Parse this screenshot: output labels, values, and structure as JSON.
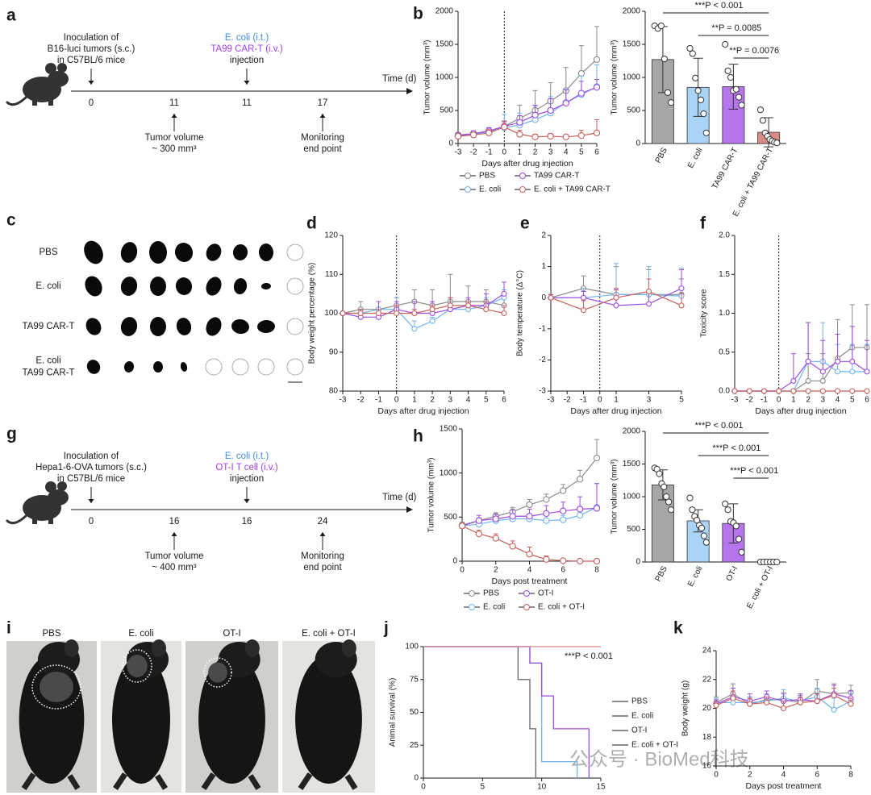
{
  "timelines": [
    {
      "panel": "a",
      "axis_label": "Time (d)",
      "events": [
        {
          "day": 0,
          "above": [
            "Inoculation of",
            "B16-luci tumors (s.c.)",
            "in C57BL/6 mice"
          ]
        },
        {
          "day": 11,
          "below": [
            "Tumor volume",
            "~ 300 mm³"
          ]
        },
        {
          "day": 11,
          "above": [
            "E. coli (i.t.)",
            "TA99 CAR-T (i.v.)",
            "injection"
          ]
        },
        {
          "day": 17,
          "below": [
            "Monitoring",
            "end point"
          ]
        }
      ]
    },
    {
      "panel": "g",
      "axis_label": "Time (d)",
      "events": [
        {
          "day": 0,
          "above": [
            "Inoculation of",
            "Hepa1-6-OVA tumors (s.c.)",
            "in C57BL/6 mice"
          ]
        },
        {
          "day": 16,
          "below": [
            "Tumor volume",
            "~ 400 mm³"
          ]
        },
        {
          "day": 16,
          "above": [
            "E. coli (i.t.)",
            "OT-I T cell (i.v.)",
            "injection"
          ]
        },
        {
          "day": 24,
          "below": [
            "Monitoring",
            "end point"
          ]
        }
      ]
    }
  ],
  "tumor_images": {
    "panel": "c",
    "rows": [
      [
        "PBS"
      ],
      [
        "E. coli"
      ],
      [
        "TA99 CAR-T"
      ],
      [
        "E. coli",
        "TA99 CAR-T"
      ]
    ]
  },
  "photos": {
    "panel": "i",
    "labels": [
      "PBS",
      "E. coli",
      "OT-I",
      "E. coli + OT-I"
    ]
  },
  "watermark": "公众号 · BioMed科技",
  "chart_data": [
    {
      "type": "line",
      "panel": "b",
      "ylabel": "Tumor volume (mm³)",
      "xlabel": "Days after drug injection",
      "x": [
        -3,
        -2,
        -1,
        0,
        1,
        2,
        3,
        4,
        5,
        6
      ],
      "xlim": [
        -3,
        6
      ],
      "xticks": [
        -3,
        -2,
        -1,
        0,
        1,
        2,
        3,
        4,
        5,
        6
      ],
      "ylim": [
        0,
        2000
      ],
      "yticks": [
        0,
        500,
        1000,
        1500,
        2000
      ],
      "vline": 0,
      "legend": "bottom",
      "series": [
        {
          "name": "PBS",
          "color": "#8c8c8c",
          "values": [
            130,
            150,
            190,
            260,
            380,
            500,
            640,
            800,
            1060,
            1270
          ],
          "errors": [
            30,
            40,
            50,
            80,
            200,
            300,
            280,
            350,
            420,
            500
          ]
        },
        {
          "name": "E. coli",
          "color": "#6fb3f0",
          "values": [
            110,
            140,
            180,
            240,
            280,
            360,
            460,
            620,
            740,
            860
          ],
          "errors": [
            40,
            50,
            60,
            200,
            180,
            200,
            250,
            200,
            280,
            330
          ]
        },
        {
          "name": "TA99 CAR-T",
          "color": "#a04be0",
          "values": [
            120,
            150,
            190,
            260,
            320,
            430,
            500,
            610,
            760,
            850
          ],
          "errors": [
            30,
            40,
            50,
            80,
            100,
            150,
            180,
            200,
            180,
            120
          ]
        },
        {
          "name": "E. coli + TA99 CAR-T",
          "color": "#c9605a",
          "values": [
            110,
            130,
            160,
            250,
            140,
            100,
            110,
            100,
            120,
            160
          ],
          "errors": [
            30,
            40,
            50,
            80,
            60,
            40,
            40,
            30,
            80,
            200
          ]
        }
      ]
    },
    {
      "type": "bar",
      "ylabel": "Tumor volume (mm³)",
      "ylim": [
        0,
        2000
      ],
      "yticks": [
        0,
        500,
        1000,
        1500,
        2000
      ],
      "categories": [
        "PBS",
        "E. coli",
        "TA99 CAR-T",
        "E. coli + TA99 CAR-T"
      ],
      "values": [
        1270,
        850,
        860,
        170
      ],
      "errors": [
        500,
        440,
        340,
        220
      ],
      "colors": [
        "#a6a6a6",
        "#a9d3f7",
        "#b675ec",
        "#d98a85"
      ],
      "points": [
        [
          1780,
          1740,
          1780,
          1280,
          770,
          620
        ],
        [
          1440,
          1360,
          990,
          800,
          660,
          450,
          160
        ],
        [
          1500,
          1100,
          1000,
          800,
          820,
          700,
          580
        ],
        [
          510,
          350,
          160,
          110,
          60,
          40,
          20,
          10
        ]
      ],
      "annotations": [
        "***P < 0.001",
        "**P = 0.0085",
        "**P = 0.0076"
      ]
    },
    {
      "type": "line",
      "panel": "d",
      "ylabel": "Body weight percentage (%)",
      "xlabel": "Days after drug injection",
      "x": [
        -3,
        -2,
        -1,
        0,
        1,
        2,
        3,
        4,
        5,
        6
      ],
      "xlim": [
        -3,
        6
      ],
      "xticks": [
        -3,
        -2,
        -1,
        0,
        1,
        2,
        3,
        4,
        5,
        6
      ],
      "ylim": [
        80,
        120
      ],
      "yticks": [
        80,
        90,
        100,
        110,
        120
      ],
      "vline": 0,
      "series": [
        {
          "color": "#8c8c8c",
          "values": [
            100,
            101,
            101,
            102,
            103,
            102,
            103,
            103,
            103,
            102
          ],
          "errors": [
            0,
            2,
            2,
            2,
            3,
            4,
            7,
            4,
            3,
            2
          ]
        },
        {
          "color": "#6fb3f0",
          "values": [
            100,
            100,
            101,
            101,
            96,
            98,
            101,
            101,
            102,
            104
          ],
          "errors": [
            0,
            1,
            2,
            3,
            2,
            1,
            2,
            2,
            2,
            2
          ]
        },
        {
          "color": "#a04be0",
          "values": [
            100,
            99,
            99,
            101,
            100,
            100,
            101,
            102,
            102,
            105
          ],
          "errors": [
            0,
            2,
            4,
            2,
            3,
            3,
            3,
            2,
            3,
            3
          ]
        },
        {
          "color": "#c9605a",
          "values": [
            100,
            100,
            100,
            100,
            100,
            101,
            102,
            102,
            101,
            100
          ],
          "errors": [
            0,
            1,
            1,
            2,
            1,
            1,
            2,
            1,
            2,
            2
          ]
        }
      ]
    },
    {
      "type": "line",
      "panel": "e",
      "ylabel": "Body temperature (Δ°C)",
      "xlabel": "Days after drug injection",
      "x": [
        -3,
        -1,
        1,
        3,
        5
      ],
      "xlim": [
        -3,
        5
      ],
      "xticks": [
        -3,
        -2,
        -1,
        0,
        1,
        3,
        5
      ],
      "ylim": [
        -3,
        2
      ],
      "yticks": [
        -3,
        -2,
        -1,
        0,
        1,
        2
      ],
      "vline": 0,
      "series": [
        {
          "color": "#8c8c8c",
          "values": [
            0,
            0.3,
            0.1,
            0.1,
            0.1
          ],
          "errors": [
            0.1,
            0.4,
            0.9,
            0.8,
            0.5
          ]
        },
        {
          "color": "#6fb3f0",
          "values": [
            0,
            0,
            0.1,
            0.1,
            0.05
          ],
          "errors": [
            0.1,
            0.3,
            1,
            0.9,
            0.9
          ]
        },
        {
          "color": "#a04be0",
          "values": [
            0,
            0,
            -0.25,
            -0.2,
            0.3
          ],
          "errors": [
            0.1,
            0.2,
            0.5,
            0.4,
            0.6
          ]
        },
        {
          "color": "#c9605a",
          "values": [
            0,
            -0.4,
            0,
            0.2,
            -0.25
          ],
          "errors": [
            0.1,
            0.3,
            0.3,
            0.4,
            0.4
          ]
        }
      ]
    },
    {
      "type": "line",
      "panel": "f",
      "ylabel": "Toxicity score",
      "xlabel": "Days after drug injection",
      "x": [
        -3,
        -2,
        -1,
        0,
        1,
        2,
        3,
        4,
        5,
        6
      ],
      "xlim": [
        -3,
        6
      ],
      "xticks": [
        -3,
        -2,
        -1,
        0,
        1,
        2,
        3,
        4,
        5,
        6
      ],
      "ylim": [
        0,
        2
      ],
      "yticks": [
        {
          "value": 0,
          "label": "0.0"
        },
        0.5,
        {
          "value": 1,
          "label": "1.0"
        },
        1.5,
        {
          "value": 2,
          "label": "2.0"
        }
      ],
      "vline": 0,
      "series": [
        {
          "color": "#8c8c8c",
          "values": [
            0,
            0,
            0,
            0,
            0,
            0.13,
            0.13,
            0.42,
            0.56,
            0.56
          ],
          "errors": [
            0,
            0,
            0,
            0,
            0,
            0.35,
            0.35,
            0.5,
            0.55,
            0.55
          ]
        },
        {
          "color": "#6fb3f0",
          "values": [
            0,
            0,
            0,
            0,
            0,
            0.38,
            0.38,
            0.25,
            0.25,
            0.25
          ],
          "errors": [
            0,
            0,
            0,
            0,
            0,
            0.5,
            0.5,
            0.35,
            0.35,
            0.35
          ]
        },
        {
          "color": "#a04be0",
          "values": [
            0,
            0,
            0,
            0,
            0.13,
            0.38,
            0.25,
            0.38,
            0.38,
            0.25
          ],
          "errors": [
            0,
            0,
            0,
            0,
            0.35,
            0.5,
            0.4,
            0.35,
            0.45,
            0.4
          ]
        },
        {
          "color": "#c9605a",
          "values": [
            0,
            0,
            0,
            0,
            0,
            0,
            0,
            0,
            0,
            0
          ],
          "errors": [
            0,
            0,
            0,
            0,
            0,
            0,
            0,
            0,
            0,
            0
          ]
        }
      ]
    },
    {
      "type": "line",
      "panel": "h",
      "ylabel": "Tumor volume (mm³)",
      "xlabel": "Days post treatment",
      "x": [
        0,
        1,
        2,
        3,
        4,
        5,
        6,
        7,
        8
      ],
      "xlim": [
        0,
        8
      ],
      "xticks": [
        0,
        2,
        4,
        6,
        8
      ],
      "ylim": [
        0,
        1500
      ],
      "yticks": [
        0,
        500,
        1000,
        1500
      ],
      "legend": "bottom",
      "series": [
        {
          "name": "PBS",
          "color": "#8c8c8c",
          "values": [
            410,
            460,
            510,
            560,
            640,
            700,
            800,
            930,
            1170
          ],
          "errors": [
            30,
            30,
            40,
            50,
            60,
            60,
            70,
            100,
            210
          ]
        },
        {
          "name": "E. coli",
          "color": "#6fb3f0",
          "values": [
            400,
            420,
            460,
            480,
            480,
            460,
            470,
            520,
            610
          ],
          "errors": [
            30,
            40,
            50,
            60,
            40,
            60,
            50,
            100,
            270
          ]
        },
        {
          "name": "OT-I",
          "color": "#a04be0",
          "values": [
            400,
            460,
            480,
            510,
            510,
            540,
            570,
            590,
            600
          ],
          "errors": [
            30,
            60,
            50,
            70,
            80,
            90,
            100,
            140,
            280
          ]
        },
        {
          "name": "E. coli + OT-I",
          "color": "#c9605a",
          "values": [
            400,
            310,
            260,
            170,
            80,
            20,
            5,
            0,
            0
          ],
          "errors": [
            30,
            40,
            50,
            60,
            80,
            40,
            10,
            0,
            0
          ]
        }
      ]
    },
    {
      "type": "bar",
      "ylabel": "Tumor volume (mm³)",
      "ylim": [
        0,
        2000
      ],
      "yticks": [
        0,
        500,
        1000,
        1500,
        2000
      ],
      "categories": [
        "PBS",
        "E. coli",
        "OT-I",
        "E. coli + OT-I"
      ],
      "values": [
        1180,
        630,
        590,
        0
      ],
      "errors": [
        230,
        170,
        300,
        0
      ],
      "colors": [
        "#a6a6a6",
        "#a9d3f7",
        "#b675ec",
        "#d98a85"
      ],
      "points": [
        [
          1440,
          1420,
          1350,
          1200,
          1150,
          1000,
          920,
          800
        ],
        [
          980,
          800,
          700,
          640,
          560,
          520,
          400,
          300
        ],
        [
          890,
          800,
          620,
          600,
          550,
          350,
          150
        ],
        [
          0,
          0,
          0,
          0,
          0,
          0
        ]
      ],
      "annotations": [
        "***P < 0.001",
        "***P < 0.001",
        "***P < 0.001"
      ]
    },
    {
      "type": "step",
      "panel": "j",
      "ylabel": "Animal survival (%)",
      "xlabel": "Days post treatment",
      "xlim": [
        0,
        15
      ],
      "xticks": [
        0,
        5,
        10,
        15
      ],
      "ylim": [
        0,
        100
      ],
      "yticks": [
        0,
        25,
        50,
        75,
        100
      ],
      "legend": "right",
      "annotation": "***P < 0.001",
      "series": [
        {
          "name": "PBS",
          "color": "#666666",
          "x": [
            0,
            8,
            9,
            9.5
          ],
          "values": [
            100,
            75,
            37.5,
            0
          ]
        },
        {
          "name": "E. coli",
          "color": "#6fb3f0",
          "x": [
            0,
            9,
            10,
            13
          ],
          "values": [
            100,
            87.5,
            12.5,
            0
          ]
        },
        {
          "name": "OT-I",
          "color": "#a04be0",
          "x": [
            0,
            9,
            10,
            11,
            14
          ],
          "values": [
            100,
            87.5,
            62.5,
            37.5,
            0
          ]
        },
        {
          "name": "E. coli + OT-I",
          "color": "#d98a85",
          "x": [
            0,
            15
          ],
          "values": [
            100,
            100
          ]
        }
      ]
    },
    {
      "type": "line",
      "panel": "k",
      "ylabel": "Body weight (g)",
      "xlabel": "Days post treatment",
      "x": [
        0,
        1,
        2,
        3,
        4,
        5,
        6,
        7,
        8
      ],
      "xlim": [
        0,
        8
      ],
      "xticks": [
        0,
        2,
        4,
        6,
        8
      ],
      "ylim": [
        16,
        24
      ],
      "yticks": [
        16,
        18,
        20,
        22,
        24
      ],
      "series": [
        {
          "color": "#8c8c8c",
          "values": [
            20.4,
            21.0,
            20.3,
            20.6,
            20.6,
            20.4,
            21.2,
            21.0,
            21.1
          ],
          "errors": [
            0.4,
            0.7,
            0.5,
            0.4,
            0.5,
            0.5,
            0.8,
            0.7,
            0.5
          ]
        },
        {
          "color": "#6fb3f0",
          "values": [
            20.4,
            20.4,
            20.4,
            20.5,
            20.7,
            20.5,
            20.8,
            19.9,
            20.5
          ],
          "errors": [
            0.3,
            0.5,
            0.4,
            0.5,
            0.6,
            0.5,
            0.6,
            0.8,
            0.5
          ]
        },
        {
          "color": "#a04be0",
          "values": [
            20.3,
            20.8,
            20.5,
            20.8,
            20.5,
            20.6,
            20.5,
            21.0,
            20.7
          ],
          "errors": [
            0.3,
            0.6,
            0.5,
            0.4,
            0.5,
            0.4,
            0.5,
            0.6,
            0.5
          ]
        },
        {
          "color": "#c9605a",
          "values": [
            20.2,
            20.7,
            20.3,
            20.4,
            20.0,
            20.4,
            20.5,
            20.9,
            20.3
          ],
          "errors": [
            0.3,
            0.5,
            0.4,
            0.4,
            0.5,
            0.4,
            0.5,
            0.5,
            0.4
          ]
        }
      ]
    }
  ]
}
